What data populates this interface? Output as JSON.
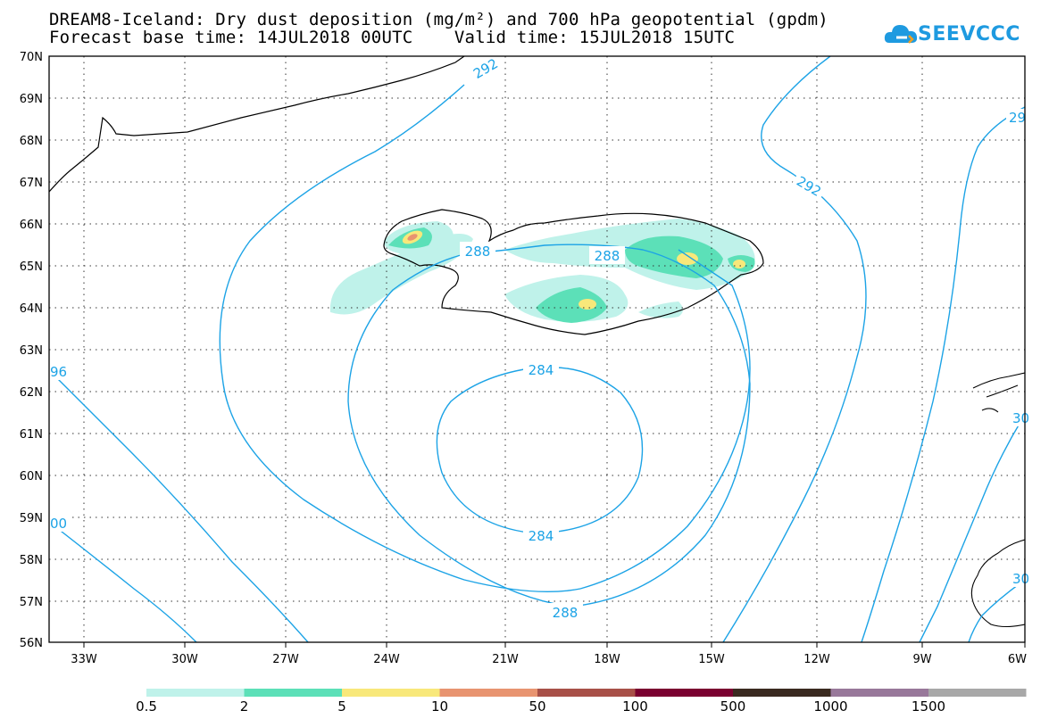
{
  "title": {
    "line1": "DREAM8-Iceland: Dry dust deposition (mg/m²) and 700 hPa geopotential (gpdm)",
    "line2": "Forecast base time: 14JUL2018 00UTC    Valid time: 15JUL2018 15UTC"
  },
  "logo": {
    "text": "SEEVCCC",
    "icon": "cloud-icon",
    "color": "#1e9ae0"
  },
  "axes": {
    "lat_ticks": [
      "70N",
      "69N",
      "68N",
      "67N",
      "66N",
      "65N",
      "64N",
      "63N",
      "62N",
      "61N",
      "60N",
      "59N",
      "58N",
      "57N",
      "56N"
    ],
    "lon_ticks": [
      "33W",
      "30W",
      "27W",
      "24W",
      "21W",
      "18W",
      "15W",
      "12W",
      "9W",
      "6W"
    ]
  },
  "contours": {
    "color": "#1ca3e6",
    "labels": [
      "292",
      "292",
      "29",
      "288",
      "288",
      "288",
      "284",
      "284",
      "96",
      "00",
      "30",
      "30"
    ]
  },
  "legend": {
    "labels": [
      "0.5",
      "2",
      "5",
      "10",
      "50",
      "100",
      "500",
      "1000",
      "1500"
    ],
    "colors": [
      "#bff2ea",
      "#5ce0b8",
      "#f8e87a",
      "#e89470",
      "#a85048",
      "#7a0030",
      "#3a2a20",
      "#98789a",
      "#a8a8a8"
    ]
  }
}
